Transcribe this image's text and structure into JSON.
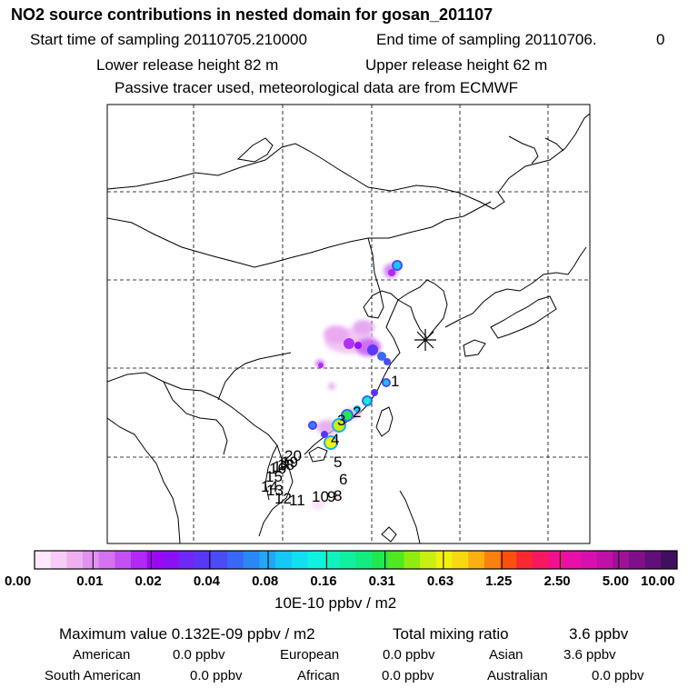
{
  "header": {
    "title": "NO2 source contributions in nested domain for gosan_201107",
    "start_label": "Start time of sampling 20110705.210000",
    "end_label": "End time of sampling 20110706.",
    "end_hour": "0",
    "lower_release": "Lower release height   82 m",
    "upper_release": "Upper release height   62 m",
    "info": "Passive tracer used, meteorological data are from ECMWF"
  },
  "map": {
    "receptor_marker": "asterisk-receptor-icon",
    "trajectory_labels": [
      "1",
      "2",
      "3",
      "4",
      "5",
      "6",
      "8",
      "9",
      "10",
      "11",
      "12",
      "13",
      "14",
      "15",
      "16",
      "17",
      "18",
      "19",
      "20"
    ]
  },
  "colorbar": {
    "colors": [
      "#fde8fd",
      "#f8ccf8",
      "#efb0f0",
      "#e092f0",
      "#d373f0",
      "#c250f2",
      "#b02af4",
      "#9d08f4",
      "#8a10f6",
      "#7028f6",
      "#5838f6",
      "#4a4df6",
      "#3a68f6",
      "#2a88f6",
      "#20a8f6",
      "#16c8f6",
      "#10e0f0",
      "#10f2e0",
      "#10f2c0",
      "#10f0a0",
      "#12ec80",
      "#20e850",
      "#50e820",
      "#90ec10",
      "#c8f010",
      "#f2f010",
      "#f8d810",
      "#fab010",
      "#fa8010",
      "#fa5010",
      "#fa2830",
      "#f81860",
      "#f2108e",
      "#e810a8",
      "#d810b0",
      "#c010a8",
      "#a0109a",
      "#80108a",
      "#601078",
      "#401060"
    ],
    "tick_labels": [
      "0.00",
      "0.01",
      "0.02",
      "0.04",
      "0.08",
      "0.16",
      "0.31",
      "0.63",
      "1.25",
      "2.50",
      "5.00",
      "10.00"
    ],
    "units": "10E-10 ppbv / m2"
  },
  "summary": {
    "max_label": "Maximum value  0.132E-09 ppbv / m2",
    "total_label": "Total mixing ratio",
    "total_value": "3.6 ppbv",
    "regions": [
      {
        "name": "American",
        "value": "0.0 ppbv"
      },
      {
        "name": "European",
        "value": "0.0 ppbv"
      },
      {
        "name": "Asian",
        "value": "3.6 ppbv"
      },
      {
        "name": "South American",
        "value": "0.0 ppbv"
      },
      {
        "name": "African",
        "value": "0.0 ppbv"
      },
      {
        "name": "Australian",
        "value": "0.0 ppbv"
      }
    ]
  }
}
